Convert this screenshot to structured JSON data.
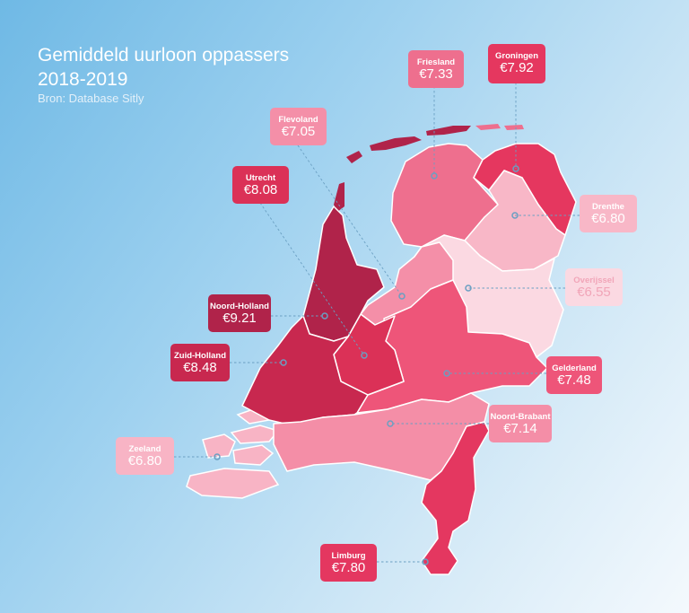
{
  "title_line1": "Gemiddeld uurloon oppassers",
  "title_line2": "2018-2019",
  "source": "Bron: Database Sitly",
  "provinces": [
    {
      "key": "friesland",
      "name": "Friesland",
      "value": "€7.33",
      "color": "#ee6f8e",
      "text": "#ffffff"
    },
    {
      "key": "groningen",
      "name": "Groningen",
      "value": "€7.92",
      "color": "#e5375f",
      "text": "#ffffff"
    },
    {
      "key": "flevoland",
      "name": "Flevoland",
      "value": "€7.05",
      "color": "#f48fa8",
      "text": "#ffffff"
    },
    {
      "key": "utrecht",
      "name": "Utrecht",
      "value": "€8.08",
      "color": "#db3157",
      "text": "#ffffff"
    },
    {
      "key": "drenthe",
      "name": "Drenthe",
      "value": "€6.80",
      "color": "#f8b7c7",
      "text": "#ffffff"
    },
    {
      "key": "overijssel",
      "name": "Overijssel",
      "value": "€6.55",
      "color": "#fbd9e2",
      "text": "#f1a5b8"
    },
    {
      "key": "noordholland",
      "name": "Noord-Holland",
      "value": "€9.21",
      "color": "#b0234a",
      "text": "#ffffff"
    },
    {
      "key": "zuidholland",
      "name": "Zuid-Holland",
      "value": "€8.48",
      "color": "#c8284f",
      "text": "#ffffff"
    },
    {
      "key": "gelderland",
      "name": "Gelderland",
      "value": "€7.48",
      "color": "#ee5579",
      "text": "#ffffff"
    },
    {
      "key": "noordbrabant",
      "name": "Noord-Brabant",
      "value": "€7.14",
      "color": "#f48ea7",
      "text": "#ffffff"
    },
    {
      "key": "zeeland",
      "name": "Zeeland",
      "value": "€6.80",
      "color": "#f8b4c5",
      "text": "#ffffff"
    },
    {
      "key": "limburg",
      "name": "Limburg",
      "value": "€7.80",
      "color": "#e43760",
      "text": "#ffffff"
    }
  ]
}
